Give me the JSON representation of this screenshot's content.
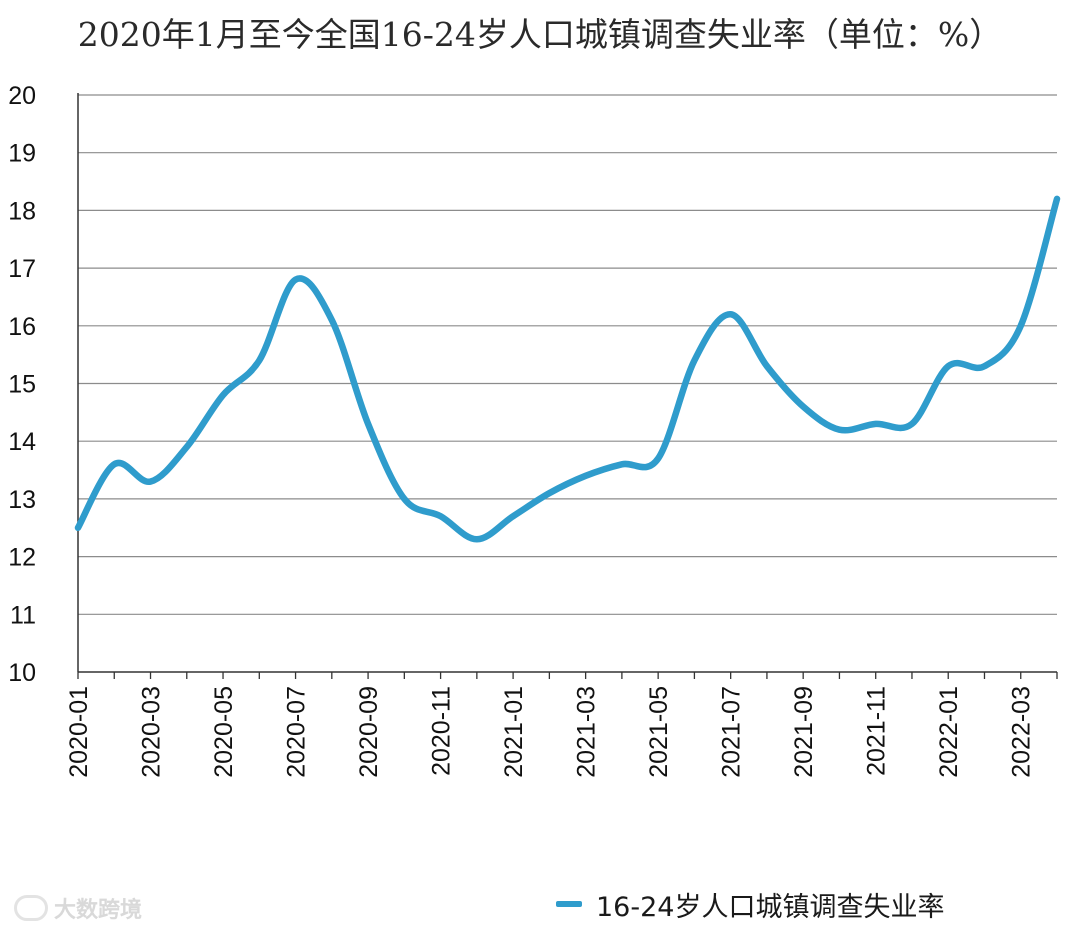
{
  "chart_data": {
    "type": "line",
    "title": "2020年1月至今全国16-24岁人口城镇调查失业率（单位：%）",
    "xlabel": "",
    "ylabel": "",
    "ylim": [
      10,
      20
    ],
    "yticks": [
      10,
      11,
      12,
      13,
      14,
      15,
      16,
      17,
      18,
      19,
      20
    ],
    "x": [
      "2020-01",
      "2020-02",
      "2020-03",
      "2020-04",
      "2020-05",
      "2020-06",
      "2020-07",
      "2020-08",
      "2020-09",
      "2020-10",
      "2020-11",
      "2020-12",
      "2021-01",
      "2021-02",
      "2021-03",
      "2021-04",
      "2021-05",
      "2021-06",
      "2021-07",
      "2021-08",
      "2021-09",
      "2021-10",
      "2021-11",
      "2021-12",
      "2022-01",
      "2022-02",
      "2022-03",
      "2022-04"
    ],
    "xtick_labels": [
      "2020-01",
      "2020-03",
      "2020-05",
      "2020-07",
      "2020-09",
      "2020-11",
      "2021-01",
      "2021-03",
      "2021-05",
      "2021-07",
      "2021-09",
      "2021-11",
      "2022-01",
      "2022-03"
    ],
    "series": [
      {
        "name": "16-24岁人口城镇调查失业率",
        "color": "#2f9ccc",
        "values": [
          12.5,
          13.6,
          13.3,
          13.9,
          14.8,
          15.4,
          16.8,
          16.1,
          14.3,
          13.0,
          12.7,
          12.3,
          12.7,
          13.1,
          13.4,
          13.6,
          13.7,
          15.4,
          16.2,
          15.3,
          14.6,
          14.2,
          14.3,
          14.3,
          15.3,
          15.3,
          16.0,
          18.2
        ]
      }
    ],
    "grid": true,
    "legend_position": "bottom-right"
  },
  "watermark": {
    "text": "大数跨境"
  }
}
